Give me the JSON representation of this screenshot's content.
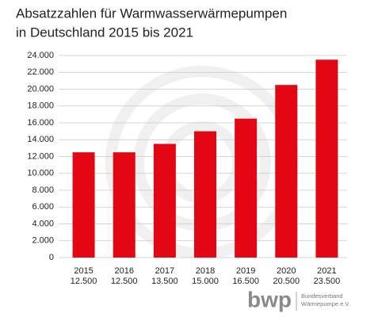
{
  "chart_data": {
    "type": "bar",
    "title": [
      "Absatzzahlen für Warmwasserwärmepumpen",
      "in Deutschland 2015 bis 2021"
    ],
    "categories": [
      "2015",
      "2016",
      "2017",
      "2018",
      "2019",
      "2020",
      "2021"
    ],
    "values": [
      12500,
      12500,
      13500,
      15000,
      16500,
      20500,
      23500
    ],
    "value_labels": [
      "12.500",
      "12.500",
      "13.500",
      "15.000",
      "16.500",
      "20.500",
      "23.500"
    ],
    "color": "#e30613",
    "ylim": [
      0,
      24000
    ],
    "yticks": [
      0,
      {
        "value": 2000,
        "label": "2.000"
      },
      {
        "value": 4000,
        "label": "4.000"
      },
      {
        "value": 6000,
        "label": "6.000"
      },
      {
        "value": 8000,
        "label": "8.000"
      },
      {
        "value": 10000,
        "label": "10.000"
      },
      {
        "value": 12000,
        "label": "12.000"
      },
      {
        "value": 14000,
        "label": "14.000"
      },
      {
        "value": 16000,
        "label": "16.000"
      },
      {
        "value": 18000,
        "label": "18.000"
      },
      {
        "value": 20000,
        "label": "20.000"
      },
      {
        "value": 22000,
        "label": "22.000"
      },
      {
        "value": 24000,
        "label": "24.000"
      }
    ],
    "grid": true
  },
  "footer": {
    "logo": "bwp",
    "org": [
      "Bundesverband",
      "Wärmepumpe e.V."
    ]
  }
}
